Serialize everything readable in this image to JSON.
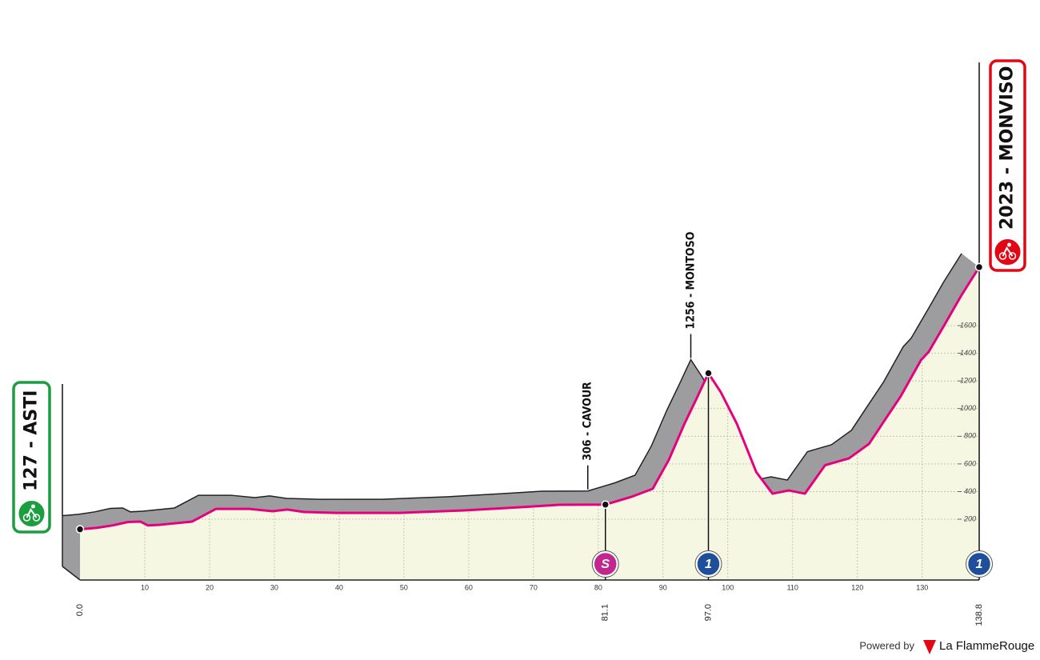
{
  "chart_data": {
    "type": "line",
    "x": [
      0,
      2.5,
      5,
      7.4,
      9.3,
      10.5,
      12.4,
      17.3,
      21,
      26,
      29.7,
      32,
      34.6,
      39.6,
      49.4,
      59.3,
      68,
      74,
      81.1,
      85.3,
      88.4,
      90.9,
      93.3,
      95.2,
      97.0,
      98.9,
      101.4,
      104.4,
      106.9,
      109.4,
      111.9,
      115,
      116.8,
      118.7,
      121.8,
      124.2,
      126.7,
      129.8,
      131,
      133.5,
      136,
      138.8
    ],
    "values": [
      127,
      137,
      155,
      180,
      183,
      155,
      160,
      183,
      275,
      275,
      258,
      270,
      252,
      246,
      246,
      264,
      287,
      304,
      306,
      365,
      420,
      630,
      890,
      1075,
      1256,
      1120,
      890,
      540,
      385,
      408,
      385,
      590,
      615,
      640,
      745,
      915,
      1090,
      1350,
      1410,
      1610,
      1815,
      2023
    ],
    "color": "#e6007e",
    "xlim": [
      0,
      138.8
    ],
    "xticks": [
      10,
      20,
      30,
      40,
      50,
      60,
      70,
      80,
      90,
      100,
      110,
      120,
      130
    ],
    "ylim": [
      0,
      2100
    ],
    "yticks": [
      200,
      400,
      600,
      800,
      1000,
      1200,
      1400,
      1600
    ],
    "grid": true,
    "points": [
      {
        "km": {
          "value": 0,
          "label": "0.0"
        },
        "label": "127 - ASTI",
        "color": "#1a9e3f"
      },
      {
        "km": 81.1,
        "label": "306 - CAVOUR",
        "icon": "S",
        "icon_color": "#c2278f"
      },
      {
        "km": {
          "value": 97,
          "label": "97.0"
        },
        "label": "1256 - MONTOSO",
        "icon": "1",
        "icon_color": "#1f4e9a"
      },
      {
        "km": 138.8,
        "label": "2023 - MONVISO",
        "icon": "1",
        "icon_color": "#1f4e9a",
        "color": "#e30613"
      }
    ],
    "footer": {
      "text": "Powered by",
      "brand": "La FlammeRouge"
    }
  }
}
